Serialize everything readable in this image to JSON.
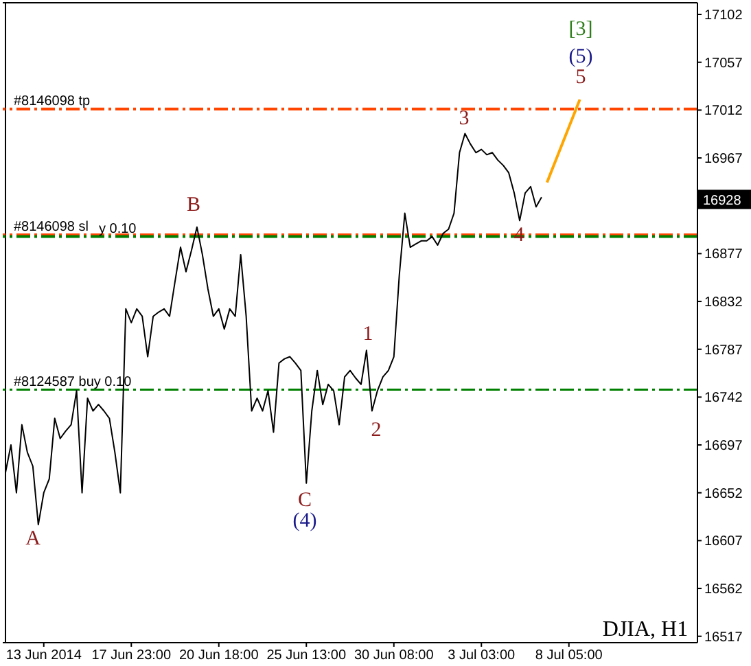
{
  "chart_data": {
    "type": "line",
    "annotations": [
      "A",
      "B",
      "C",
      "(4)",
      "1",
      "2",
      "3",
      "4",
      "5",
      "(5)",
      "[3]",
      "DJIA, H1",
      {
        "text": "16928",
        "y": 16928
      }
    ],
    "categories": [
      null,
      null,
      null,
      null,
      null,
      null,
      null,
      "13 Jun 2014",
      null,
      null,
      null,
      null,
      null,
      null,
      null,
      null,
      null,
      null,
      null,
      null,
      null,
      null,
      null,
      "17 Jun 23:00",
      null,
      null,
      null,
      null,
      null,
      null,
      null,
      null,
      null,
      null,
      null,
      null,
      null,
      null,
      null,
      "20 Jun 18:00",
      null,
      null,
      null,
      null,
      null,
      null,
      null,
      null,
      null,
      null,
      null,
      null,
      null,
      null,
      null,
      "25 Jun 13:00",
      null,
      null,
      null,
      null,
      null,
      null,
      null,
      null,
      null,
      null,
      null,
      null,
      null,
      null,
      null,
      "30 Jun 08:00",
      null,
      null,
      null,
      null,
      null,
      null,
      null,
      null,
      null,
      null,
      null,
      null,
      null,
      null,
      null,
      "3 Jul 03:00",
      null,
      null,
      null,
      null,
      null,
      null,
      null,
      null,
      null,
      null,
      null,
      null,
      null,
      null,
      null,
      "8 Jul 05:00",
      null,
      null,
      null,
      null,
      null,
      null,
      null,
      null,
      null,
      null,
      null,
      null,
      null,
      null,
      null,
      null,
      null,
      null,
      null,
      null,
      null,
      null,
      null
    ],
    "series": [
      {
        "color": "#000000",
        "values": [
          16671,
          16697,
          16652,
          16716,
          16690,
          16677,
          16622,
          16652,
          16665,
          16722,
          16703,
          16710,
          16716,
          16748,
          16652,
          16741,
          16729,
          16735,
          16729,
          16722,
          16690,
          16652,
          16825,
          16812,
          16825,
          16818,
          16780,
          16818,
          16822,
          16825,
          16818,
          16851,
          16883,
          16860,
          16880,
          16902,
          16876,
          16844,
          16818,
          16825,
          16806,
          16825,
          16818,
          16876,
          16818,
          16729,
          16741,
          16729,
          16748,
          16709,
          16774,
          16778,
          16780,
          16774,
          16767,
          16661,
          16729,
          16767,
          16735,
          16754,
          16748,
          16716,
          16761,
          16767,
          16760,
          16754,
          16786,
          16729,
          16748,
          16761,
          16767,
          16780,
          16857,
          16915,
          16883,
          16886,
          16889,
          16889,
          16893,
          16885,
          16896,
          16900,
          16915,
          16972,
          16990,
          16980,
          16972,
          16975,
          16970,
          16972,
          16965,
          16960,
          16953,
          16934,
          16908,
          16934,
          16940,
          16921,
          16930,
          null,
          null,
          null,
          null,
          null,
          null,
          null,
          null,
          null,
          null,
          null,
          null,
          null,
          null,
          null,
          null,
          null,
          null,
          null,
          null,
          null,
          null,
          null,
          null,
          null,
          null,
          null,
          null
        ]
      },
      {
        "color": "#ffa500",
        "values": [
          null,
          null,
          null,
          null,
          null,
          null,
          null,
          null,
          null,
          null,
          null,
          null,
          null,
          null,
          null,
          null,
          null,
          null,
          null,
          null,
          null,
          null,
          null,
          null,
          null,
          null,
          null,
          null,
          null,
          null,
          null,
          null,
          null,
          null,
          null,
          null,
          null,
          null,
          null,
          null,
          null,
          null,
          null,
          null,
          null,
          null,
          null,
          null,
          null,
          null,
          null,
          null,
          null,
          null,
          null,
          null,
          null,
          null,
          null,
          null,
          null,
          null,
          null,
          null,
          null,
          null,
          null,
          null,
          null,
          null,
          null,
          null,
          null,
          null,
          null,
          null,
          null,
          null,
          null,
          null,
          null,
          null,
          null,
          null,
          null,
          null,
          null,
          null,
          null,
          null,
          null,
          null,
          null,
          null,
          null,
          null,
          null,
          null,
          null,
          16944,
          16957,
          16970,
          16983,
          16996,
          17009,
          17022,
          null,
          null,
          null,
          null,
          null,
          null,
          null,
          null,
          null,
          null,
          null,
          null,
          null,
          null,
          null,
          null,
          null,
          null,
          null,
          null,
          null
        ]
      }
    ],
    "ref_lines": [
      {
        "axis": "y",
        "value": 17013,
        "label": "#8146098 tp",
        "color": "#ff4500",
        "line_style": "dashed"
      },
      {
        "axis": "y",
        "value": 16895,
        "label": "#8146098 sl",
        "color": "#ff4500",
        "line_style": "dashed"
      },
      {
        "axis": "y",
        "value": 16893,
        "label": "y 0.10",
        "color": "#008000",
        "line_style": "dashed"
      },
      {
        "axis": "y",
        "value": 16749,
        "label": "#8124587 buy 0.10",
        "color": "#008000",
        "line_style": "dashed"
      }
    ],
    "ylim": [
      16511,
      17113
    ],
    "yticks": [
      16517,
      16562,
      16607,
      16652,
      16697,
      16742,
      16787,
      16832,
      16877,
      16967,
      17012,
      17057,
      17102
    ],
    "marker": "none",
    "line_style": "solid"
  }
}
